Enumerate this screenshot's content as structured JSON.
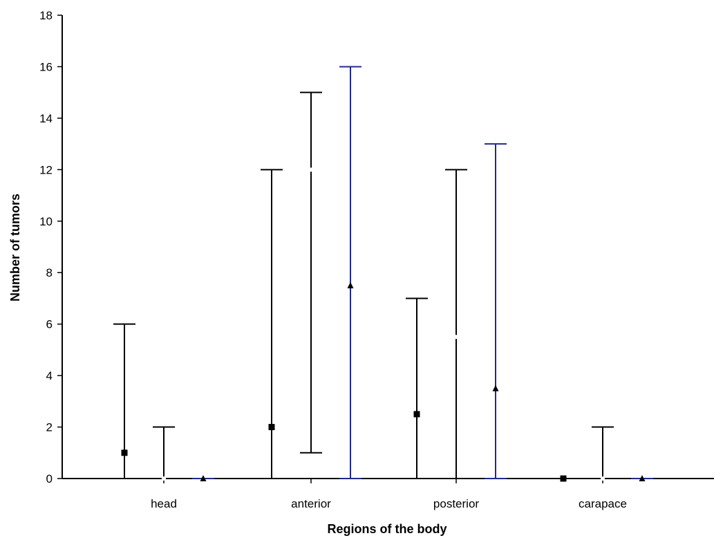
{
  "chart_data": {
    "type": "errorbar",
    "xlabel": "Regions of the body",
    "ylabel": "Number of tumors",
    "ylim": [
      0,
      18
    ],
    "yticks": [
      0,
      2,
      4,
      6,
      8,
      10,
      12,
      14,
      16,
      18
    ],
    "categories": [
      "head",
      "anterior",
      "posterior",
      "carapace"
    ],
    "grid": false,
    "series": [
      {
        "marker": "square",
        "color": "#000000",
        "median": [
          1,
          2,
          2.5,
          0
        ],
        "min": [
          0,
          0,
          0,
          0
        ],
        "max": [
          6,
          12,
          7,
          0
        ]
      },
      {
        "marker": "circle",
        "color": "#000000",
        "median": [
          0,
          12,
          5.5,
          0
        ],
        "min": [
          0,
          1,
          0,
          0
        ],
        "max": [
          2,
          15,
          12,
          2
        ]
      },
      {
        "marker": "triangle",
        "color": "#1f2a8c",
        "median": [
          0,
          7.5,
          3.5,
          0
        ],
        "min": [
          0,
          0,
          0,
          0
        ],
        "max": [
          0,
          16,
          13,
          0
        ]
      }
    ]
  }
}
